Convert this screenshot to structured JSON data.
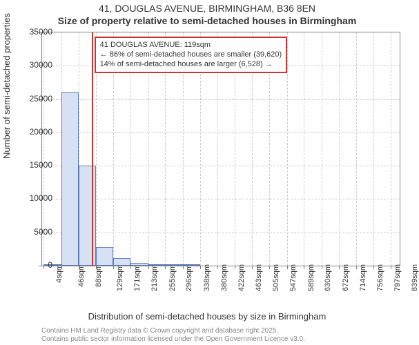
{
  "title_main": "41, DOUGLAS AVENUE, BIRMINGHAM, B36 8EN",
  "title_sub": "Size of property relative to semi-detached houses in Birmingham",
  "ylabel": "Number of semi-detached properties",
  "xlabel": "Distribution of semi-detached houses by size in Birmingham",
  "footer_line1": "Contains HM Land Registry data © Crown copyright and database right 2025.",
  "footer_line2": "Contains public sector information licensed under the Open Government Licence v3.0.",
  "annotation": {
    "line1": "41 DOUGLAS AVENUE: 119sqm",
    "line2": "← 86% of semi-detached houses are smaller (39,620)",
    "line3": "14% of semi-detached houses are larger (6,528) →"
  },
  "chart": {
    "type": "histogram",
    "background_color": "#ffffff",
    "grid_color": "#cccccc",
    "border_color": "#808080",
    "bar_fill": "#d6e2f3",
    "bar_stroke": "#5b7bb8",
    "marker_color": "#cc3333",
    "marker_x": 119,
    "x_min": 0,
    "x_max": 860,
    "x_ticks": [
      4,
      46,
      88,
      129,
      171,
      213,
      255,
      296,
      338,
      380,
      422,
      463,
      505,
      547,
      589,
      630,
      672,
      714,
      756,
      797,
      839
    ],
    "x_tick_suffix": "sqm",
    "y_min": 0,
    "y_max": 35000,
    "y_ticks": [
      0,
      5000,
      10000,
      15000,
      20000,
      25000,
      30000,
      35000
    ],
    "bars": [
      {
        "x0": 4,
        "x1": 46,
        "y": 250
      },
      {
        "x0": 46,
        "x1": 88,
        "y": 26000
      },
      {
        "x0": 88,
        "x1": 129,
        "y": 15000
      },
      {
        "x0": 129,
        "x1": 171,
        "y": 2800
      },
      {
        "x0": 171,
        "x1": 213,
        "y": 1100
      },
      {
        "x0": 213,
        "x1": 255,
        "y": 450
      },
      {
        "x0": 255,
        "x1": 296,
        "y": 250
      },
      {
        "x0": 296,
        "x1": 338,
        "y": 150
      },
      {
        "x0": 338,
        "x1": 380,
        "y": 80
      },
      {
        "x0": 380,
        "x1": 422,
        "y": 50
      },
      {
        "x0": 422,
        "x1": 463,
        "y": 30
      },
      {
        "x0": 463,
        "x1": 505,
        "y": 20
      },
      {
        "x0": 505,
        "x1": 547,
        "y": 12
      },
      {
        "x0": 547,
        "x1": 589,
        "y": 8
      },
      {
        "x0": 589,
        "x1": 630,
        "y": 6
      },
      {
        "x0": 630,
        "x1": 672,
        "y": 4
      },
      {
        "x0": 672,
        "x1": 714,
        "y": 3
      },
      {
        "x0": 714,
        "x1": 756,
        "y": 2
      },
      {
        "x0": 756,
        "x1": 797,
        "y": 2
      },
      {
        "x0": 797,
        "x1": 839,
        "y": 1
      }
    ],
    "title_fontsize": 14,
    "label_fontsize": 13,
    "tick_fontsize": 12
  }
}
